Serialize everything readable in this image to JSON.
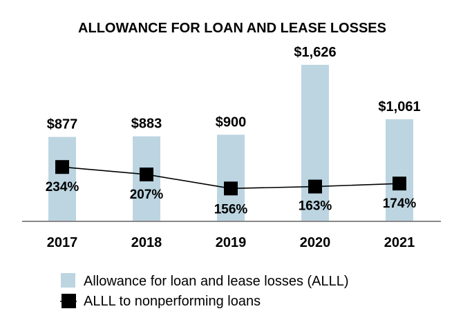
{
  "chart_data": {
    "type": "bar",
    "title": "ALLOWANCE FOR LOAN AND LEASE LOSSES",
    "categories": [
      "2017",
      "2018",
      "2019",
      "2020",
      "2021"
    ],
    "series": [
      {
        "name": "Allowance for loan and lease losses (ALLL)",
        "type": "bar",
        "values": [
          877,
          883,
          900,
          1626,
          1061
        ],
        "labels": [
          "$877",
          "$883",
          "$900",
          "$1,626",
          "$1,061"
        ],
        "color": "#bcd5e1"
      },
      {
        "name": "ALLL to nonperforming loans",
        "type": "line",
        "values": [
          234,
          207,
          156,
          163,
          174
        ],
        "labels": [
          "234%",
          "207%",
          "156%",
          "163%",
          "174%"
        ],
        "color": "#000000",
        "marker": "square"
      }
    ],
    "legend_position": "bottom",
    "grid": false
  }
}
